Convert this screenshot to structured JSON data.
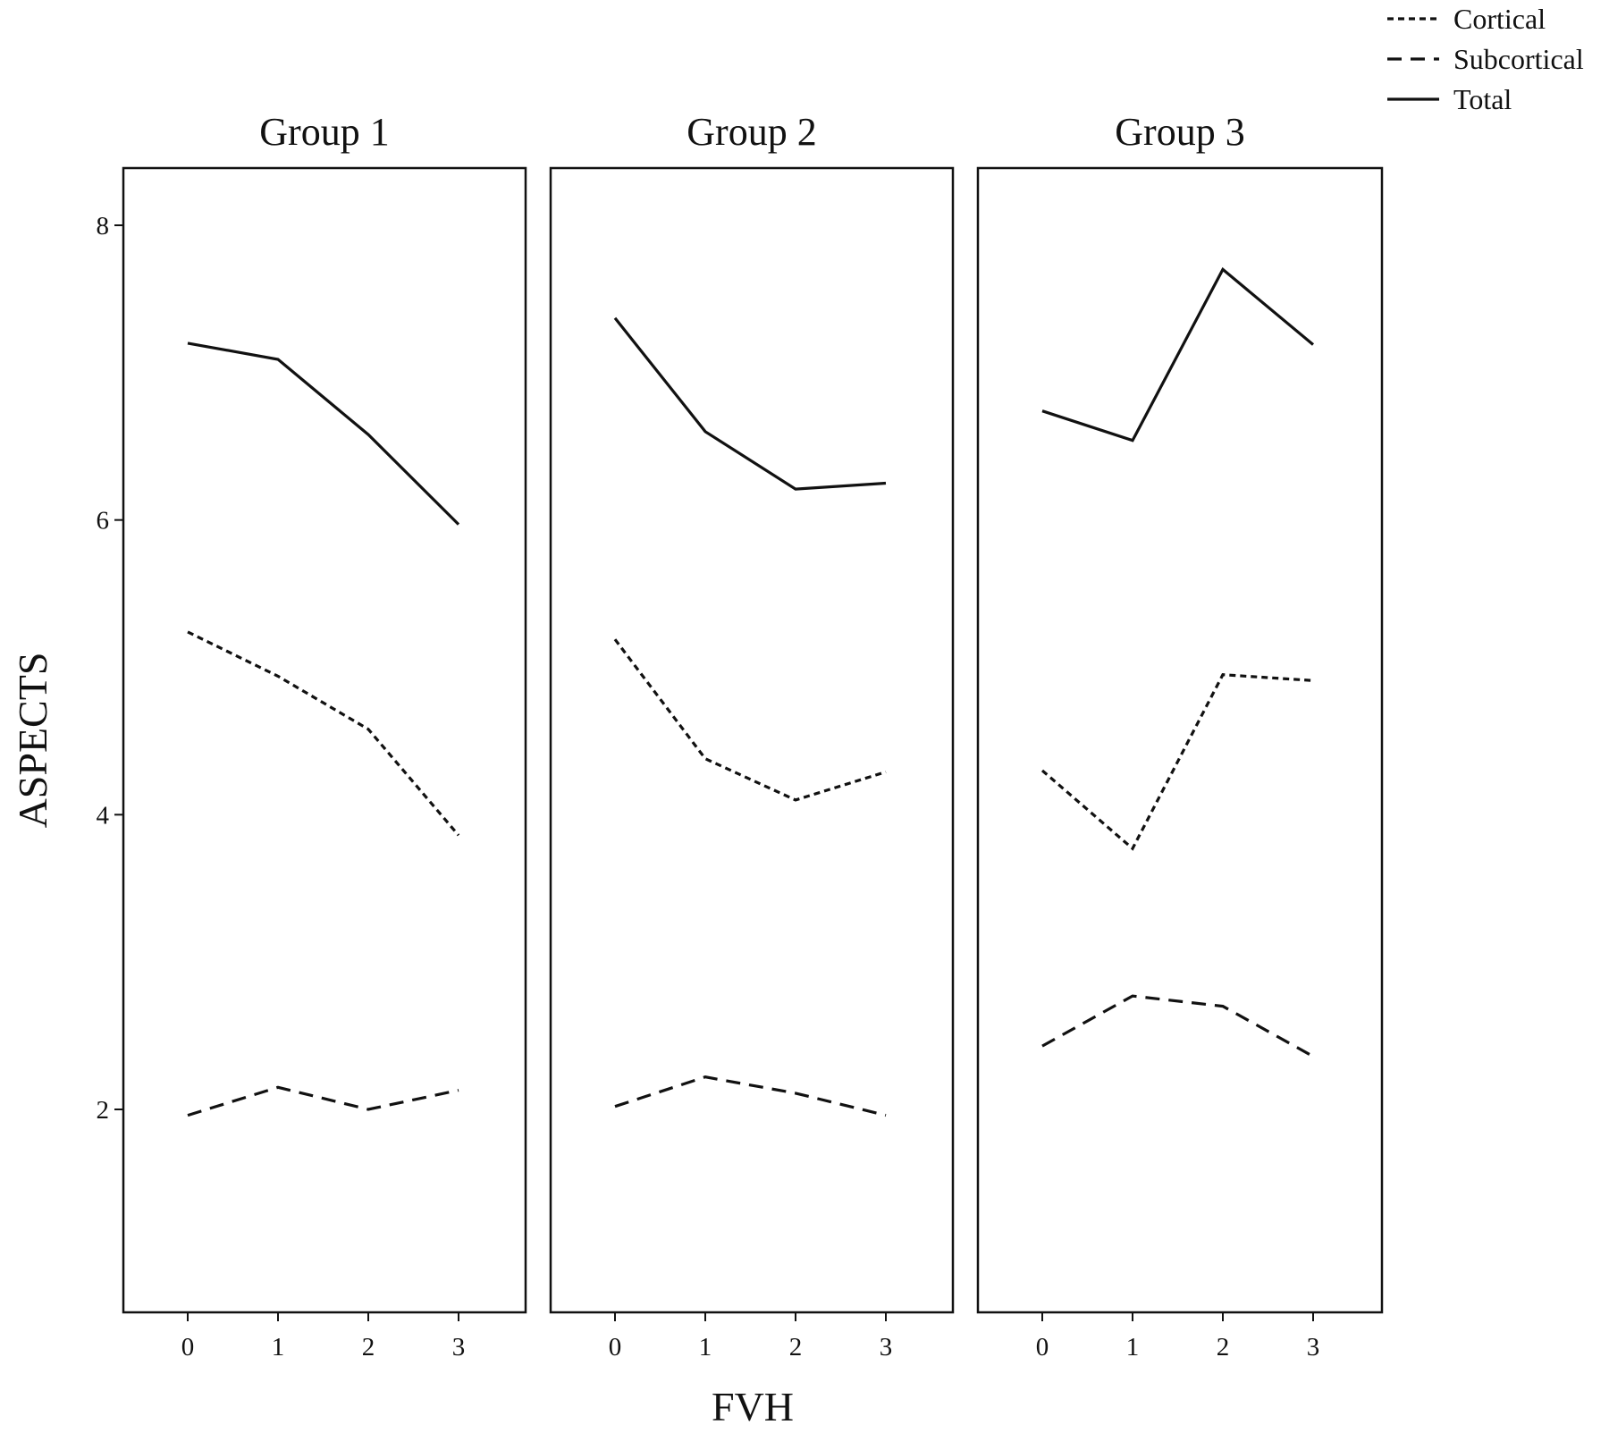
{
  "chart_data": {
    "type": "line",
    "xlabel": "FVH",
    "ylabel": "ASPECTS",
    "ylim": [
      0.6,
      8.4
    ],
    "yticks": [
      2,
      4,
      6,
      8
    ],
    "xticks": [
      0,
      1,
      2,
      3
    ],
    "grid": false,
    "legend_position": "top-right",
    "legend": [
      {
        "name": "Cortical",
        "style": "dotted"
      },
      {
        "name": "Subcortical",
        "style": "dashed"
      },
      {
        "name": "Total",
        "style": "solid"
      }
    ],
    "panels": [
      {
        "title": "Group 1",
        "x": [
          0,
          1,
          2,
          3
        ],
        "series": [
          {
            "name": "Total",
            "values": [
              7.2,
              7.09,
              6.58,
              5.97
            ]
          },
          {
            "name": "Cortical",
            "values": [
              5.24,
              4.94,
              4.58,
              3.86
            ]
          },
          {
            "name": "Subcortical",
            "values": [
              1.96,
              2.15,
              2.0,
              2.13
            ]
          }
        ]
      },
      {
        "title": "Group 2",
        "x": [
          0,
          1,
          2,
          3
        ],
        "series": [
          {
            "name": "Total",
            "values": [
              7.37,
              6.6,
              6.21,
              6.25
            ]
          },
          {
            "name": "Cortical",
            "values": [
              5.19,
              4.38,
              4.1,
              4.29
            ]
          },
          {
            "name": "Subcortical",
            "values": [
              2.02,
              2.22,
              2.11,
              1.96
            ]
          }
        ]
      },
      {
        "title": "Group 3",
        "x": [
          0,
          1,
          2,
          3
        ],
        "series": [
          {
            "name": "Total",
            "values": [
              6.74,
              6.54,
              7.7,
              7.19
            ]
          },
          {
            "name": "Cortical",
            "values": [
              4.3,
              3.77,
              4.95,
              4.91
            ]
          },
          {
            "name": "Subcortical",
            "values": [
              2.43,
              2.77,
              2.7,
              2.36
            ]
          }
        ]
      }
    ]
  }
}
